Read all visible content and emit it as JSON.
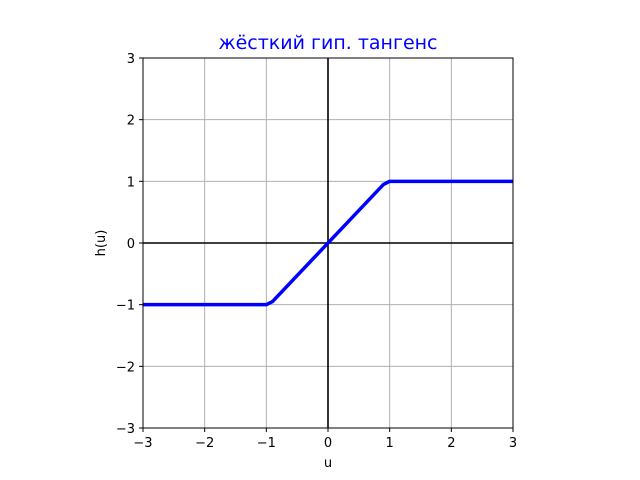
{
  "chart_data": {
    "type": "line",
    "title": "жёсткий гип. тангенс",
    "title_color": "#0000ff",
    "xlabel": "u",
    "ylabel": "h(u)",
    "xlim": [
      -3,
      3
    ],
    "ylim": [
      -3,
      3
    ],
    "xticks": [
      -3,
      -2,
      -1,
      0,
      1,
      2,
      3
    ],
    "yticks": [
      -3,
      -2,
      -1,
      0,
      1,
      2,
      3
    ],
    "xtick_labels": [
      "−3",
      "−2",
      "−1",
      "0",
      "1",
      "2",
      "3"
    ],
    "ytick_labels": [
      "−3",
      "−2",
      "−1",
      "0",
      "1",
      "2",
      "3"
    ],
    "grid": true,
    "series": [
      {
        "color": "#0000ff",
        "x": [
          -3,
          -1.0,
          -0.9,
          0.9,
          1.0,
          3
        ],
        "y": [
          -1,
          -1.0,
          -0.95,
          0.95,
          1.0,
          1
        ]
      }
    ],
    "reference_lines": [
      {
        "orientation": "horizontal",
        "value": 0,
        "color": "#000000"
      },
      {
        "orientation": "vertical",
        "value": 0,
        "color": "#000000"
      }
    ]
  }
}
